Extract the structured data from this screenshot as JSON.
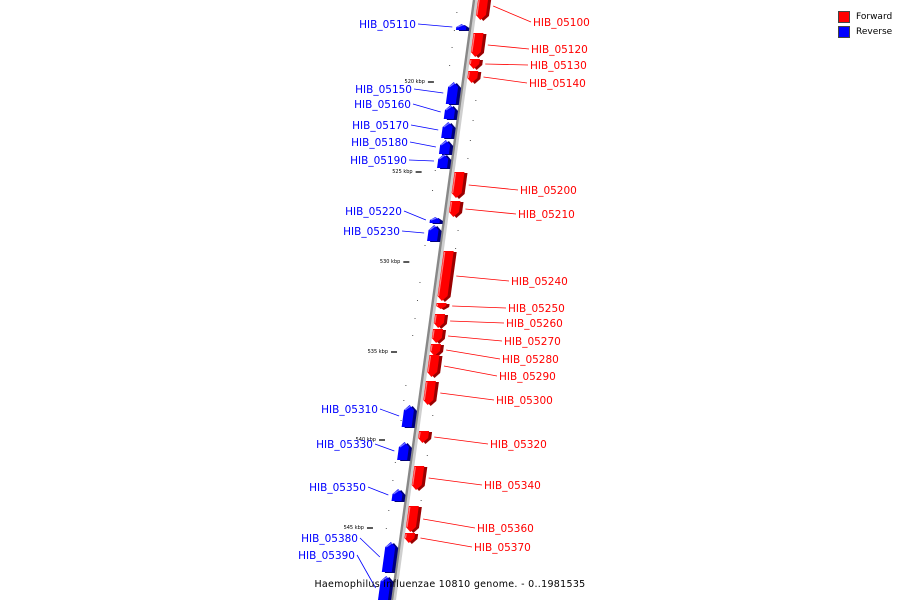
{
  "caption": "Haemophilus influenzae 10810 genome. - 0..1981535",
  "legend": [
    {
      "label": "Forward",
      "color": "#ff0000"
    },
    {
      "label": "Reverse",
      "color": "#0000ff"
    }
  ],
  "colors": {
    "forward": "#ff0000",
    "reverse": "#0000ff",
    "backbone": "#888888"
  },
  "ticks": [
    {
      "label": "520 kbp",
      "kbp": 520
    },
    {
      "label": "525 kbp",
      "kbp": 525
    },
    {
      "label": "530 kbp",
      "kbp": 530
    },
    {
      "label": "535 kbp",
      "kbp": 535
    },
    {
      "label": "540 kbp",
      "kbp": 540
    },
    {
      "label": "545 kbp",
      "kbp": 545
    }
  ],
  "genes": [
    {
      "name": "HIB_05100",
      "strand": "forward"
    },
    {
      "name": "HIB_05110",
      "strand": "reverse"
    },
    {
      "name": "HIB_05120",
      "strand": "forward"
    },
    {
      "name": "HIB_05130",
      "strand": "forward"
    },
    {
      "name": "HIB_05140",
      "strand": "forward"
    },
    {
      "name": "HIB_05150",
      "strand": "reverse"
    },
    {
      "name": "HIB_05160",
      "strand": "reverse"
    },
    {
      "name": "HIB_05170",
      "strand": "reverse"
    },
    {
      "name": "HIB_05180",
      "strand": "reverse"
    },
    {
      "name": "HIB_05190",
      "strand": "reverse"
    },
    {
      "name": "HIB_05200",
      "strand": "forward"
    },
    {
      "name": "HIB_05210",
      "strand": "forward"
    },
    {
      "name": "HIB_05220",
      "strand": "reverse"
    },
    {
      "name": "HIB_05230",
      "strand": "reverse"
    },
    {
      "name": "HIB_05240",
      "strand": "forward"
    },
    {
      "name": "HIB_05250",
      "strand": "forward"
    },
    {
      "name": "HIB_05260",
      "strand": "forward"
    },
    {
      "name": "HIB_05270",
      "strand": "forward"
    },
    {
      "name": "HIB_05280",
      "strand": "forward"
    },
    {
      "name": "HIB_05290",
      "strand": "forward"
    },
    {
      "name": "HIB_05300",
      "strand": "forward"
    },
    {
      "name": "HIB_05310",
      "strand": "reverse"
    },
    {
      "name": "HIB_05320",
      "strand": "forward"
    },
    {
      "name": "HIB_05330",
      "strand": "reverse"
    },
    {
      "name": "HIB_05340",
      "strand": "forward"
    },
    {
      "name": "HIB_05350",
      "strand": "reverse"
    },
    {
      "name": "HIB_05360",
      "strand": "forward"
    },
    {
      "name": "HIB_05370",
      "strand": "forward"
    },
    {
      "name": "HIB_05380",
      "strand": "reverse"
    },
    {
      "name": "HIB_05390",
      "strand": "reverse"
    }
  ]
}
